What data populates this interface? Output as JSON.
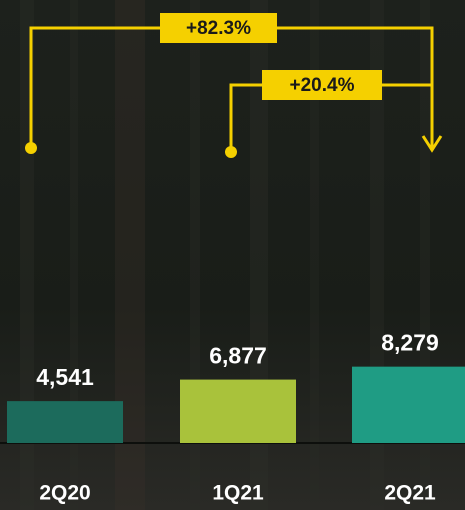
{
  "chart_data": {
    "type": "bar",
    "categories": [
      "2Q20",
      "1Q21",
      "2Q21"
    ],
    "values": [
      4541,
      6877,
      8279
    ],
    "value_labels": [
      "4,541",
      "6,877",
      "8,279"
    ],
    "colors": [
      "#1c6b5c",
      "#a9c23b",
      "#1f9c84"
    ],
    "ylim": [
      0,
      9000
    ],
    "annotations": [
      "+82.3%",
      "+20.4%"
    ],
    "annotation_color": "#f5d000"
  }
}
